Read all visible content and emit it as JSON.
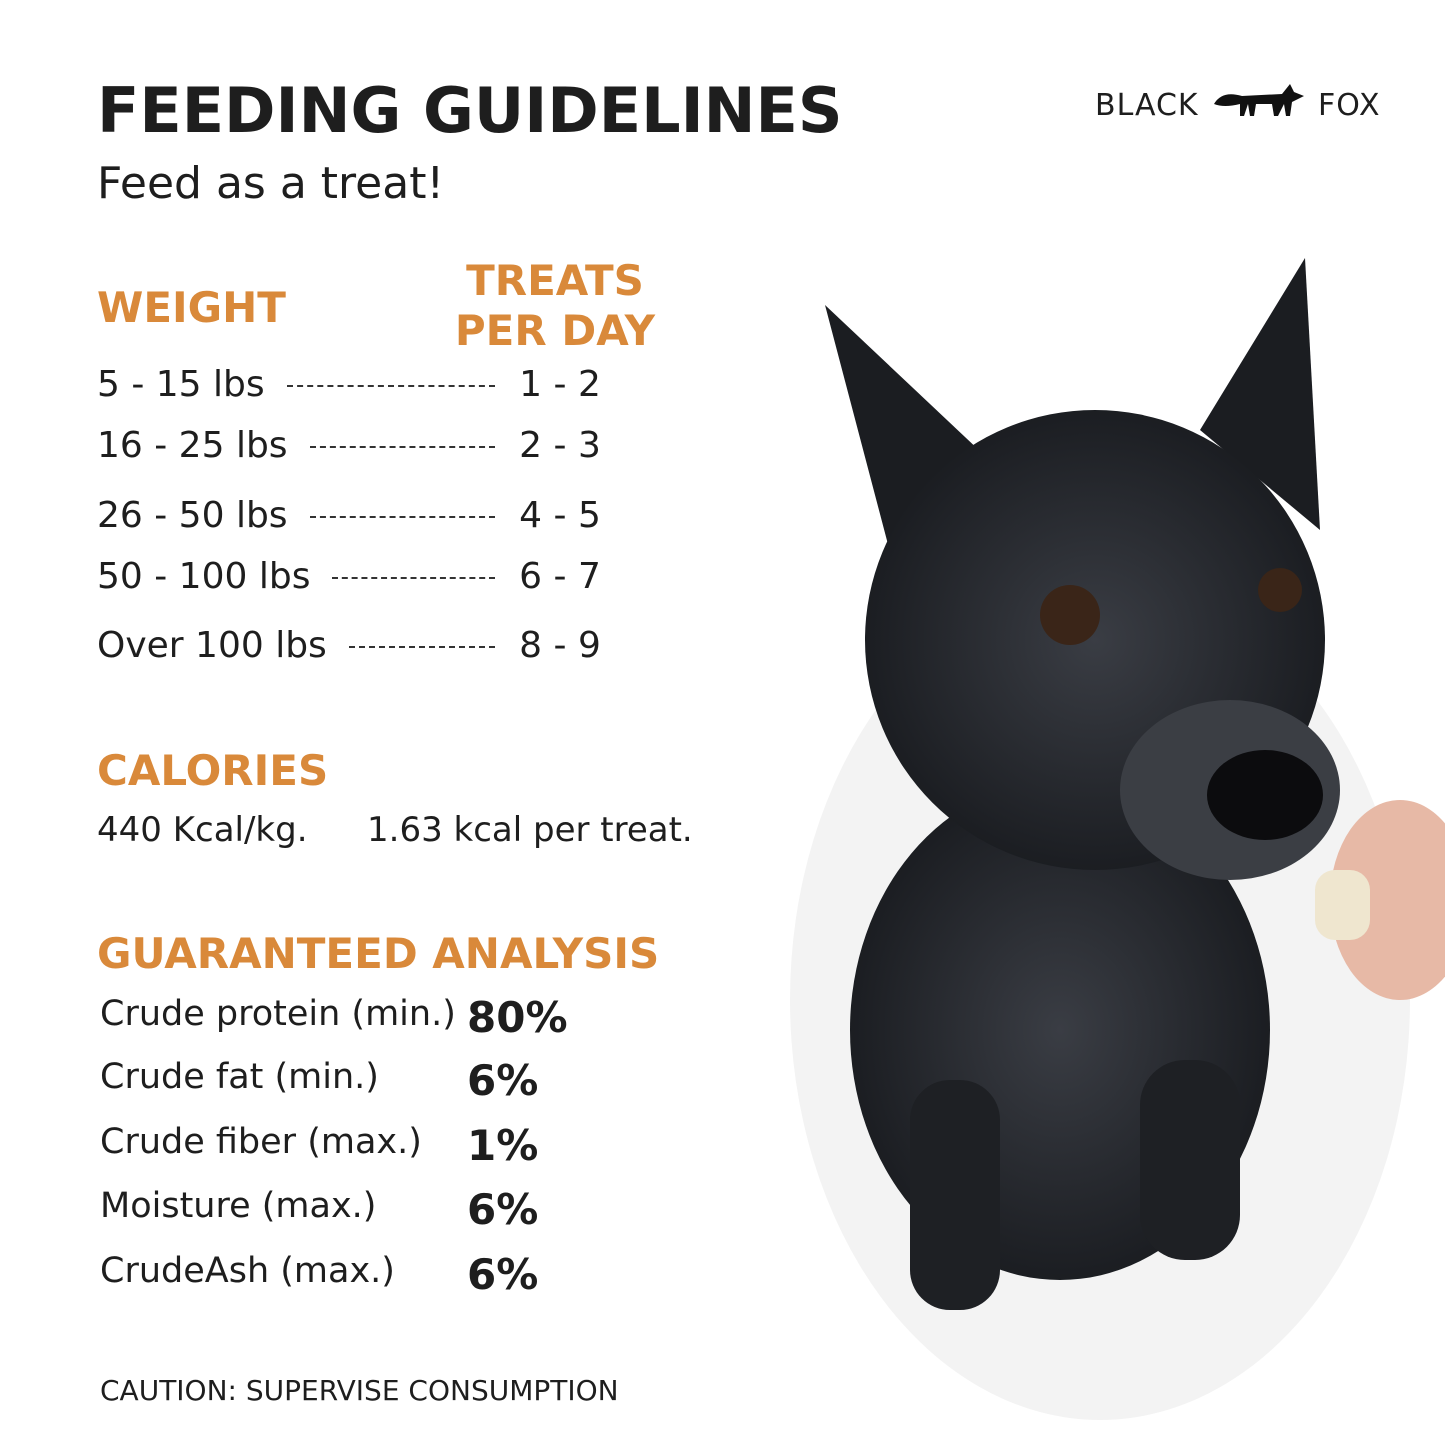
{
  "header": {
    "title": "FEEDING GUIDELINES",
    "subtitle": "Feed as a treat!"
  },
  "brand": {
    "left": "BLACK",
    "right": "FOX"
  },
  "feeding": {
    "headers": [
      "WEIGHT",
      "TREATS PER DAY"
    ],
    "rows": [
      [
        "5 - 15 lbs",
        "1 - 2"
      ],
      [
        "16 - 25 lbs",
        "2 - 3"
      ],
      [
        "26 - 50 lbs",
        "4 - 5"
      ],
      [
        "50 - 100 lbs",
        "6 - 7"
      ],
      [
        "Over 100 lbs",
        "8 - 9"
      ]
    ]
  },
  "calories": {
    "title": "CALORIES",
    "values": [
      "440 Kcal/kg.",
      "1.63 kcal per treat."
    ]
  },
  "analysis": {
    "title": "GUARANTEED ANALYSIS",
    "rows": [
      [
        "Crude protein (min.)",
        "80%"
      ],
      [
        "Crude fat (min.)",
        "6%"
      ],
      [
        "Crude fiber (max.)",
        "1%"
      ],
      [
        "Moisture (max.)",
        "6%"
      ],
      [
        "CrudeAsh (max.)",
        "6%"
      ]
    ]
  },
  "caution": "CAUTION: SUPERVISE CONSUMPTION"
}
